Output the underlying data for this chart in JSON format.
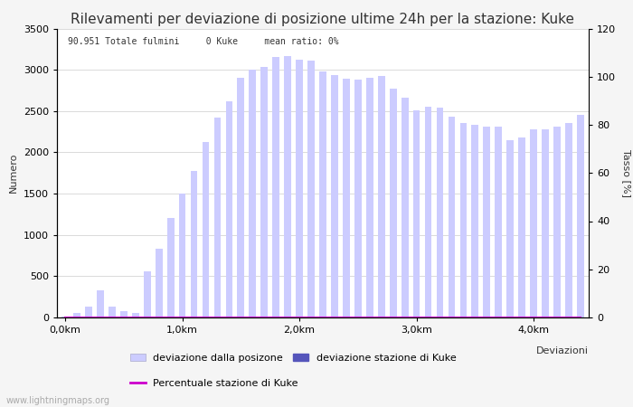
{
  "title": "Rilevamenti per deviazione di posizione ultime 24h per la stazione: Kuke",
  "subtitle": "90.951 Totale fulmini     0 Kuke     mean ratio: 0%",
  "xlabel": "Deviazioni",
  "ylabel_left": "Numero",
  "ylabel_right": "Tasso [%]",
  "watermark": "www.lightningmaps.org",
  "bar_values": [
    10,
    50,
    130,
    330,
    130,
    80,
    60,
    560,
    830,
    1200,
    1500,
    1780,
    2130,
    2420,
    2620,
    2900,
    3000,
    3030,
    3160,
    3170,
    3120,
    3110,
    2980,
    2940,
    2890,
    2880,
    2900,
    2930,
    2770,
    2660,
    2510,
    2550,
    2540,
    2430,
    2350,
    2330,
    2310,
    2310,
    2150,
    2180,
    2280,
    2280,
    2310,
    2360,
    2450
  ],
  "bar_color": "#ccccff",
  "bar_color_station": "#5555bb",
  "station_values": [
    0,
    0,
    0,
    0,
    0,
    0,
    0,
    0,
    0,
    0,
    0,
    0,
    0,
    0,
    0,
    0,
    0,
    0,
    0,
    0,
    0,
    0,
    0,
    0,
    0,
    0,
    0,
    0,
    0,
    0,
    0,
    0,
    0,
    0,
    0,
    0,
    0,
    0,
    0,
    0,
    0,
    0,
    0,
    0,
    0
  ],
  "ratio_values": [
    0,
    0,
    0,
    0,
    0,
    0,
    0,
    0,
    0,
    0,
    0,
    0,
    0,
    0,
    0,
    0,
    0,
    0,
    0,
    0,
    0,
    0,
    0,
    0,
    0,
    0,
    0,
    0,
    0,
    0,
    0,
    0,
    0,
    0,
    0,
    0,
    0,
    0,
    0,
    0,
    0,
    0,
    0,
    0,
    0
  ],
  "ratio_color": "#cc00cc",
  "ylim_left": [
    0,
    3500
  ],
  "ylim_right": [
    0,
    120
  ],
  "xtick_positions": [
    0,
    10,
    20,
    30,
    40
  ],
  "xtick_labels": [
    "0,0km",
    "1,0km",
    "2,0km",
    "3,0km",
    "4,0km"
  ],
  "ytick_left": [
    0,
    500,
    1000,
    1500,
    2000,
    2500,
    3000,
    3500
  ],
  "ytick_right": [
    0,
    20,
    40,
    60,
    80,
    100,
    120
  ],
  "legend_label_bar": "deviazione dalla posizone",
  "legend_label_station": "deviazione stazione di Kuke",
  "legend_label_ratio": "Percentuale stazione di Kuke",
  "bg_color": "#f5f5f5",
  "plot_bg_color": "#ffffff",
  "grid_color": "#cccccc",
  "font_color": "#333333",
  "title_fontsize": 11,
  "axis_fontsize": 8,
  "n_bars": 45,
  "bar_width": 0.6,
  "figsize": [
    7.0,
    4.5
  ],
  "dpi": 100
}
